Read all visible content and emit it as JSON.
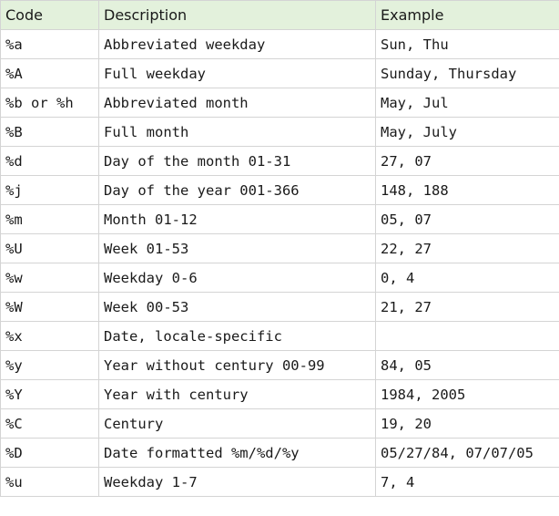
{
  "headers": {
    "code": "Code",
    "description": "Description",
    "example": "Example"
  },
  "rows": [
    {
      "code": "%a",
      "description": "Abbreviated weekday",
      "example": "Sun, Thu"
    },
    {
      "code": "%A",
      "description": "Full weekday",
      "example": "Sunday, Thursday"
    },
    {
      "code": "%b or %h",
      "description": "Abbreviated month",
      "example": "May, Jul"
    },
    {
      "code": "%B",
      "description": "Full month",
      "example": "May, July"
    },
    {
      "code": "%d",
      "description": "Day of the month 01-31",
      "example": "27, 07"
    },
    {
      "code": "%j",
      "description": "Day of the year 001-366",
      "example": "148, 188"
    },
    {
      "code": "%m",
      "description": "Month 01-12",
      "example": "05, 07"
    },
    {
      "code": "%U",
      "description": "Week 01-53",
      "example": "22, 27"
    },
    {
      "code": "%w",
      "description": "Weekday 0-6",
      "example": "0, 4"
    },
    {
      "code": "%W",
      "description": "Week 00-53",
      "example": "21, 27"
    },
    {
      "code": "%x",
      "description": "Date, locale-specific",
      "example": ""
    },
    {
      "code": "%y",
      "description": "Year without century 00-99",
      "example": "84, 05"
    },
    {
      "code": "%Y",
      "description": "Year with century",
      "example": "1984, 2005"
    },
    {
      "code": "%C",
      "description": "Century",
      "example": "19, 20"
    },
    {
      "code": "%D",
      "description": "Date formatted %m/%d/%y",
      "example": "05/27/84, 07/07/05"
    },
    {
      "code": "%u",
      "description": "Weekday 1-7",
      "example": "7, 4"
    }
  ],
  "colors": {
    "header_background": "#e3f1dc",
    "border": "#d4d4d4",
    "text": "#1a1a1a"
  }
}
